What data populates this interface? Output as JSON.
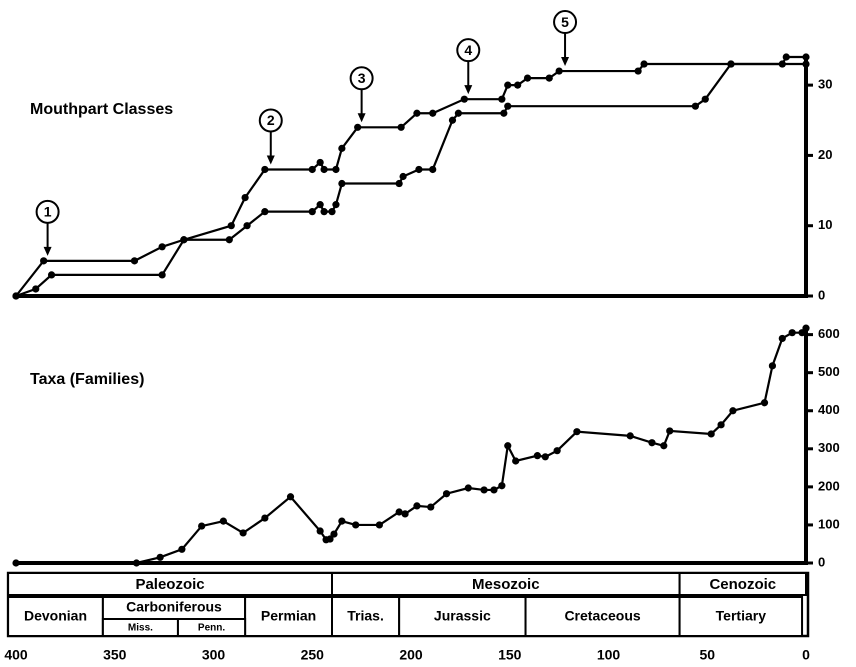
{
  "chart_data": [
    {
      "type": "line",
      "title": "Mouthpart  Classes",
      "xlim": [
        400,
        0
      ],
      "ylim": [
        0,
        34
      ],
      "yticks": [
        0,
        10,
        20,
        30
      ],
      "series": [
        {
          "color": "#000000",
          "x": [
            400,
            386,
            340,
            326,
            315,
            291,
            284,
            274,
            250,
            246,
            244,
            238,
            235,
            227,
            205,
            197,
            189,
            173,
            154,
            151,
            146,
            141,
            130,
            125,
            85,
            82,
            38,
            12,
            10,
            0
          ],
          "values": [
            0,
            5,
            5,
            7,
            8,
            10,
            14,
            18,
            18,
            19,
            18,
            18,
            21,
            24,
            24,
            26,
            26,
            28,
            28,
            30,
            30,
            31,
            31,
            32,
            32,
            33,
            33,
            33,
            34,
            34
          ]
        },
        {
          "color": "#000000",
          "x": [
            400,
            390,
            382,
            326,
            315,
            292,
            283,
            274,
            250,
            246,
            244,
            240,
            238,
            235,
            206,
            204,
            196,
            189,
            179,
            176,
            153,
            151,
            56,
            51,
            38,
            0
          ],
          "values": [
            0,
            1,
            3,
            3,
            8,
            8,
            10,
            12,
            12,
            13,
            12,
            12,
            13,
            16,
            16,
            17,
            18,
            18,
            25,
            26,
            26,
            27,
            27,
            28,
            33,
            33
          ]
        }
      ],
      "annotations": [
        {
          "text": "1",
          "x": 384,
          "y": 5
        },
        {
          "text": "2",
          "x": 271,
          "y": 18
        },
        {
          "text": "3",
          "x": 225,
          "y": 24
        },
        {
          "text": "4",
          "x": 171,
          "y": 28
        },
        {
          "text": "5",
          "x": 122,
          "y": 32
        }
      ]
    },
    {
      "type": "line",
      "title": "Taxa (Families)",
      "xlim": [
        400,
        0
      ],
      "ylim": [
        0,
        620
      ],
      "yticks": [
        0,
        100,
        200,
        300,
        400,
        500,
        600
      ],
      "xticks": [
        400,
        350,
        300,
        250,
        200,
        150,
        100,
        50,
        0
      ],
      "series": [
        {
          "color": "#000000",
          "x": [
            400,
            339,
            327,
            316,
            306,
            295,
            285,
            274,
            261,
            246,
            243,
            241,
            239,
            235,
            228,
            216,
            206,
            203,
            197,
            190,
            182,
            171,
            163,
            158,
            154,
            151,
            147,
            136,
            132,
            126,
            116,
            89,
            78,
            72,
            69,
            48,
            43,
            37,
            21,
            17,
            12,
            7,
            2,
            0
          ],
          "values": [
            0,
            0,
            15,
            36,
            97,
            110,
            79,
            118,
            174,
            84,
            61,
            63,
            76,
            110,
            100,
            100,
            134,
            129,
            150,
            147,
            182,
            197,
            192,
            192,
            203,
            308,
            268,
            282,
            279,
            295,
            345,
            334,
            316,
            308,
            347,
            339,
            363,
            400,
            421,
            518,
            590,
            605,
            605,
            617
          ]
        }
      ]
    }
  ],
  "timescale": {
    "eras": [
      {
        "label": "Paleozoic",
        "start": 404,
        "end": 240
      },
      {
        "label": "Mesozoic",
        "start": 240,
        "end": 64
      },
      {
        "label": "Cenozoic",
        "start": 64,
        "end": 0
      }
    ],
    "periods": [
      {
        "label": "Devonian",
        "start": 404,
        "end": 356
      },
      {
        "label": "Carboniferous",
        "start": 356,
        "end": 284
      },
      {
        "label": "Permian",
        "start": 284,
        "end": 240
      },
      {
        "label": "Trias.",
        "start": 240,
        "end": 206
      },
      {
        "label": "Jurassic",
        "start": 206,
        "end": 142
      },
      {
        "label": "Cretaceous",
        "start": 142,
        "end": 64
      },
      {
        "label": "Tertiary",
        "start": 64,
        "end": 2
      }
    ],
    "subperiods": [
      {
        "label": "Miss.",
        "start": 356,
        "end": 318
      },
      {
        "label": "Penn.",
        "start": 318,
        "end": 284
      }
    ]
  }
}
